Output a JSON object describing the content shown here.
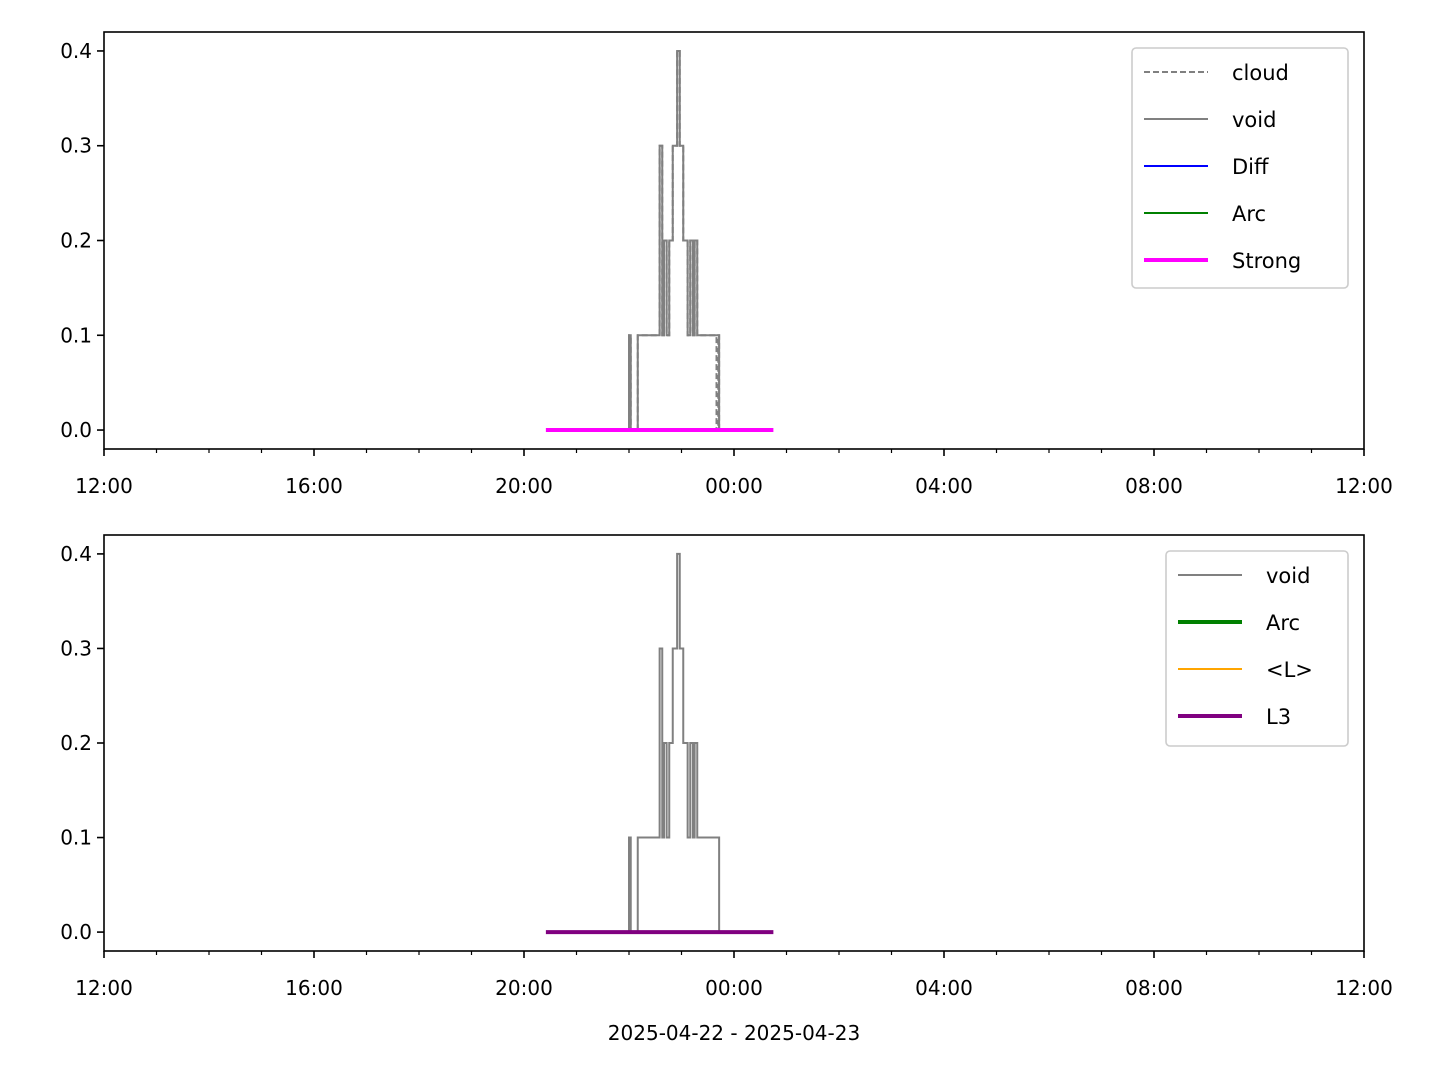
{
  "chart_data": [
    {
      "type": "line",
      "ylim": [
        -0.02,
        0.42
      ],
      "yticks": [
        0.0,
        0.1,
        0.2,
        0.3,
        0.4
      ],
      "ytick_labels": [
        "0.0",
        "0.1",
        "0.2",
        "0.3",
        "0.4"
      ],
      "xlim": [
        "2025-04-22 12:00",
        "2025-04-23 12:00"
      ],
      "xtick_labels": [
        "12:00",
        "16:00",
        "20:00",
        "00:00",
        "04:00",
        "08:00",
        "12:00"
      ],
      "xlabel": "",
      "legend_position": "upper right",
      "series": [
        {
          "name": "cloud",
          "color": "#808080",
          "style": "dashed",
          "width": "thin",
          "x": [
            "2025-04-22 22:00",
            "2025-04-22 22:00",
            "2025-04-22 22:02",
            "2025-04-22 22:02",
            "2025-04-22 22:10",
            "2025-04-22 22:10",
            "2025-04-22 22:12",
            "2025-04-22 22:12",
            "2025-04-22 22:35",
            "2025-04-22 22:35",
            "2025-04-22 22:38",
            "2025-04-22 22:38",
            "2025-04-22 22:40",
            "2025-04-22 22:40",
            "2025-04-22 22:43",
            "2025-04-22 22:43",
            "2025-04-22 22:46",
            "2025-04-22 22:46",
            "2025-04-22 22:50",
            "2025-04-22 22:50",
            "2025-04-22 22:55",
            "2025-04-22 22:55",
            "2025-04-22 22:58",
            "2025-04-22 22:58",
            "2025-04-22 23:02",
            "2025-04-22 23:02",
            "2025-04-22 23:07",
            "2025-04-22 23:07",
            "2025-04-22 23:10",
            "2025-04-22 23:10",
            "2025-04-22 23:13",
            "2025-04-22 23:13",
            "2025-04-22 23:15",
            "2025-04-22 23:15",
            "2025-04-22 23:18",
            "2025-04-22 23:18",
            "2025-04-22 23:40",
            "2025-04-22 23:40",
            "2025-04-22 23:42",
            "2025-04-22 23:42",
            "2025-04-22 23:43",
            "2025-04-22 23:43"
          ],
          "y": [
            0.0,
            0.1,
            0.1,
            0.0,
            0.0,
            0.1,
            0.1,
            0.1,
            0.1,
            0.3,
            0.3,
            0.1,
            0.1,
            0.2,
            0.2,
            0.1,
            0.1,
            0.2,
            0.2,
            0.3,
            0.3,
            0.4,
            0.4,
            0.3,
            0.3,
            0.2,
            0.2,
            0.1,
            0.1,
            0.2,
            0.2,
            0.1,
            0.1,
            0.2,
            0.2,
            0.1,
            0.1,
            0.0,
            0.0,
            0.1,
            0.1,
            0.0
          ]
        },
        {
          "name": "void",
          "color": "#808080",
          "style": "solid",
          "width": "thin",
          "x": [
            "2025-04-22 22:00",
            "2025-04-22 22:00",
            "2025-04-22 22:02",
            "2025-04-22 22:02",
            "2025-04-22 22:10",
            "2025-04-22 22:10",
            "2025-04-22 22:12",
            "2025-04-22 22:12",
            "2025-04-22 22:35",
            "2025-04-22 22:35",
            "2025-04-22 22:38",
            "2025-04-22 22:38",
            "2025-04-22 22:40",
            "2025-04-22 22:40",
            "2025-04-22 22:43",
            "2025-04-22 22:43",
            "2025-04-22 22:46",
            "2025-04-22 22:46",
            "2025-04-22 22:50",
            "2025-04-22 22:50",
            "2025-04-22 22:55",
            "2025-04-22 22:55",
            "2025-04-22 22:58",
            "2025-04-22 22:58",
            "2025-04-22 23:02",
            "2025-04-22 23:02",
            "2025-04-22 23:07",
            "2025-04-22 23:07",
            "2025-04-22 23:10",
            "2025-04-22 23:10",
            "2025-04-22 23:13",
            "2025-04-22 23:13",
            "2025-04-22 23:15",
            "2025-04-22 23:15",
            "2025-04-22 23:18",
            "2025-04-22 23:18",
            "2025-04-22 23:43",
            "2025-04-22 23:43"
          ],
          "y": [
            0.0,
            0.1,
            0.1,
            0.0,
            0.0,
            0.1,
            0.1,
            0.1,
            0.1,
            0.3,
            0.3,
            0.1,
            0.1,
            0.2,
            0.2,
            0.1,
            0.1,
            0.2,
            0.2,
            0.3,
            0.3,
            0.4,
            0.4,
            0.3,
            0.3,
            0.2,
            0.2,
            0.1,
            0.1,
            0.2,
            0.2,
            0.1,
            0.1,
            0.2,
            0.2,
            0.1,
            0.1,
            0.0
          ]
        },
        {
          "name": "Diff",
          "color": "#0000ff",
          "style": "solid",
          "width": "thin",
          "x": [],
          "y": []
        },
        {
          "name": "Arc",
          "color": "#008000",
          "style": "solid",
          "width": "thin",
          "x": [],
          "y": []
        },
        {
          "name": "Strong",
          "color": "#ff00ff",
          "style": "solid",
          "width": "thick",
          "x": [
            "2025-04-22 20:25",
            "2025-04-23 00:45"
          ],
          "y": [
            0.0,
            0.0
          ]
        }
      ]
    },
    {
      "type": "line",
      "ylim": [
        -0.02,
        0.42
      ],
      "yticks": [
        0.0,
        0.1,
        0.2,
        0.3,
        0.4
      ],
      "ytick_labels": [
        "0.0",
        "0.1",
        "0.2",
        "0.3",
        "0.4"
      ],
      "xlim": [
        "2025-04-22 12:00",
        "2025-04-23 12:00"
      ],
      "xtick_labels": [
        "12:00",
        "16:00",
        "20:00",
        "00:00",
        "04:00",
        "08:00",
        "12:00"
      ],
      "xlabel": "2025-04-22 - 2025-04-23",
      "legend_position": "upper right",
      "series": [
        {
          "name": "void",
          "color": "#808080",
          "style": "solid",
          "width": "thin",
          "x": [
            "2025-04-22 22:00",
            "2025-04-22 22:00",
            "2025-04-22 22:02",
            "2025-04-22 22:02",
            "2025-04-22 22:10",
            "2025-04-22 22:10",
            "2025-04-22 22:12",
            "2025-04-22 22:12",
            "2025-04-22 22:35",
            "2025-04-22 22:35",
            "2025-04-22 22:38",
            "2025-04-22 22:38",
            "2025-04-22 22:40",
            "2025-04-22 22:40",
            "2025-04-22 22:43",
            "2025-04-22 22:43",
            "2025-04-22 22:46",
            "2025-04-22 22:46",
            "2025-04-22 22:50",
            "2025-04-22 22:50",
            "2025-04-22 22:55",
            "2025-04-22 22:55",
            "2025-04-22 22:58",
            "2025-04-22 22:58",
            "2025-04-22 23:02",
            "2025-04-22 23:02",
            "2025-04-22 23:07",
            "2025-04-22 23:07",
            "2025-04-22 23:10",
            "2025-04-22 23:10",
            "2025-04-22 23:13",
            "2025-04-22 23:13",
            "2025-04-22 23:15",
            "2025-04-22 23:15",
            "2025-04-22 23:18",
            "2025-04-22 23:18",
            "2025-04-22 23:43",
            "2025-04-22 23:43"
          ],
          "y": [
            0.0,
            0.1,
            0.1,
            0.0,
            0.0,
            0.1,
            0.1,
            0.1,
            0.1,
            0.3,
            0.3,
            0.1,
            0.1,
            0.2,
            0.2,
            0.1,
            0.1,
            0.2,
            0.2,
            0.3,
            0.3,
            0.4,
            0.4,
            0.3,
            0.3,
            0.2,
            0.2,
            0.1,
            0.1,
            0.2,
            0.2,
            0.1,
            0.1,
            0.2,
            0.2,
            0.1,
            0.1,
            0.0
          ]
        },
        {
          "name": "Arc",
          "color": "#008000",
          "style": "solid",
          "width": "thick",
          "x": [],
          "y": []
        },
        {
          "name": "<L>",
          "color": "#ffa500",
          "style": "solid",
          "width": "thin",
          "x": [],
          "y": []
        },
        {
          "name": "L3",
          "color": "#800080",
          "style": "solid",
          "width": "thick",
          "x": [
            "2025-04-22 20:25",
            "2025-04-23 00:45"
          ],
          "y": [
            0.0,
            0.0
          ]
        }
      ]
    }
  ]
}
